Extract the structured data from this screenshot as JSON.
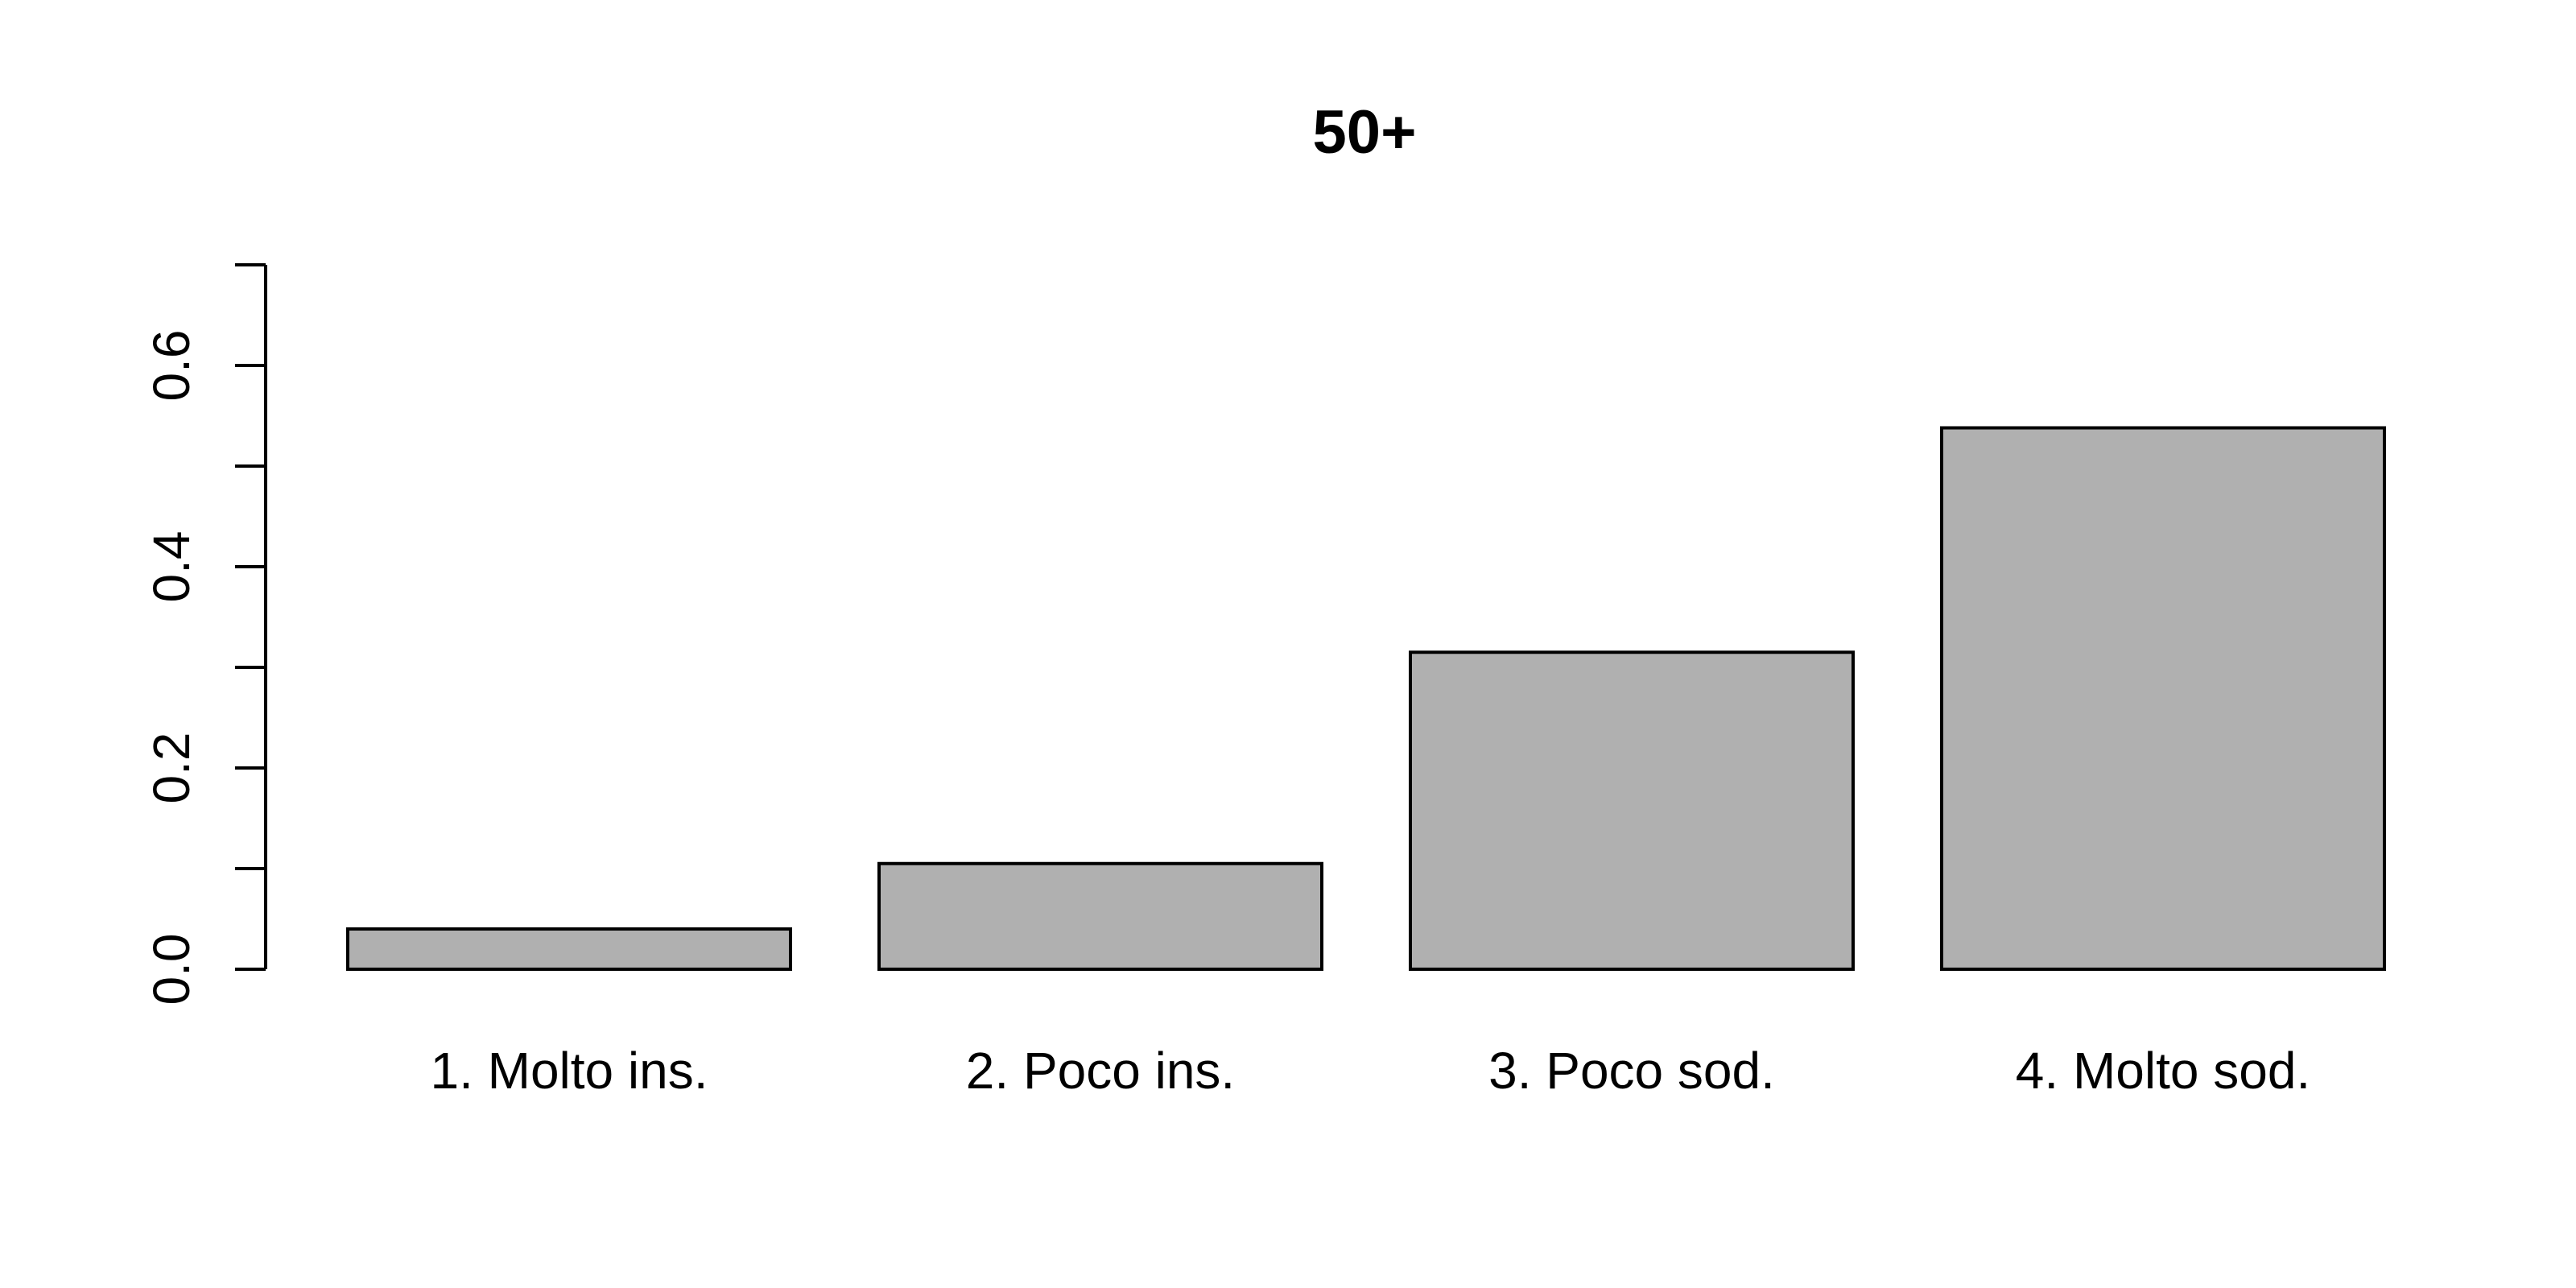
{
  "chart_data": {
    "type": "bar",
    "title": "50+",
    "categories": [
      "1. Molto ins.",
      "2. Poco ins.",
      "3. Poco sod.",
      "4. Molto sod."
    ],
    "values": [
      0.04,
      0.105,
      0.315,
      0.538
    ],
    "xlabel": "",
    "ylabel": "",
    "ylim": [
      0,
      0.7
    ],
    "y_ticks": [
      0,
      0.1,
      0.2,
      0.3,
      0.4,
      0.5,
      0.6,
      0.7
    ],
    "y_tick_labels": [
      {
        "value": 0,
        "label": "0.0"
      },
      {
        "value": 0.2,
        "label": "0.2"
      },
      {
        "value": 0.4,
        "label": "0.4"
      },
      {
        "value": 0.6,
        "label": "0.6"
      }
    ],
    "bar_color": "#b0b0b0",
    "grid": false,
    "legend": "none"
  }
}
